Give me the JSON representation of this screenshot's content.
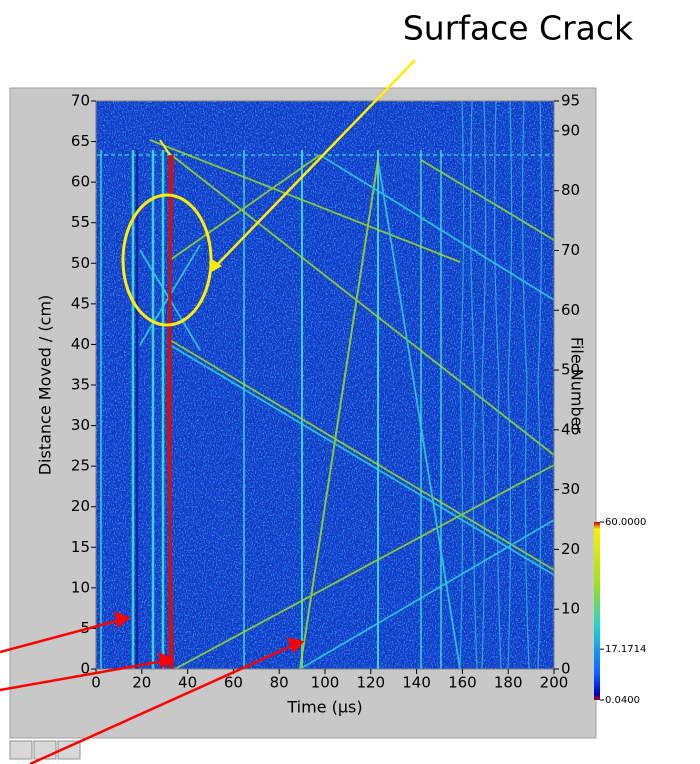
{
  "chart_data": {
    "type": "intensity",
    "annotation": "Surface Crack",
    "x_label": "Time (µs)",
    "y_label": "Distance Moved / (cm)",
    "y2_label": "File Number",
    "xlim": [
      0,
      200
    ],
    "xticks": [
      0,
      20,
      40,
      60,
      80,
      100,
      120,
      140,
      160,
      180,
      200
    ],
    "ylim": [
      0,
      70
    ],
    "yticks": [
      0,
      5,
      10,
      15,
      20,
      25,
      30,
      35,
      40,
      45,
      50,
      55,
      60,
      65,
      70
    ],
    "y2lim": [
      0,
      95
    ],
    "y2ticks": [
      0,
      10,
      20,
      30,
      40,
      50,
      60,
      70,
      80,
      90,
      95
    ],
    "colorbar": {
      "lim": [
        0.04,
        60
      ],
      "ticks": [
        {
          "value": 60,
          "label": "60.0000"
        },
        {
          "value": 17.1714,
          "label": "17.1714"
        },
        {
          "value": 0.04,
          "label": "0.0400"
        }
      ]
    }
  }
}
